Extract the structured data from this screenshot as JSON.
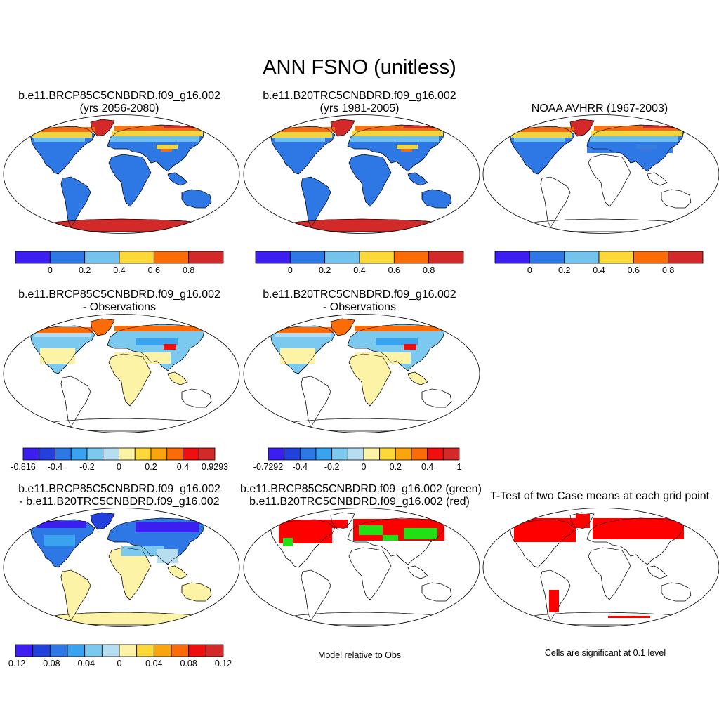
{
  "figure": {
    "title": "ANN FSNO (unitless)"
  },
  "colors": {
    "abs_levels": [
      "#3c1ef0",
      "#2e78e6",
      "#73c3ee",
      "#fcd938",
      "#fb6b06",
      "#d32a29"
    ],
    "diff_levels": [
      "#3c1ef0",
      "#2241dc",
      "#2e78e6",
      "#3aa3f0",
      "#7cc9f0",
      "#b7def0",
      "#fdf3a7",
      "#fcd938",
      "#fba50e",
      "#fb6b06",
      "#ef0f0f",
      "#d32a29"
    ],
    "sig_red": "#ff0000",
    "sig_green": "#22e014"
  },
  "panels": [
    {
      "id": "p1",
      "title_line1": "b.e11.BRCP85C5CNBDRD.f09_g16.002",
      "title_line2": "(yrs 2056-2080)",
      "colorbar_labels": [
        "0",
        "0.2",
        "0.4",
        "0.6",
        "0.8"
      ]
    },
    {
      "id": "p2",
      "title_line1": "b.e11.B20TRC5CNBDRD.f09_g16.002",
      "title_line2": "(yrs 1981-2005)",
      "colorbar_labels": [
        "0",
        "0.2",
        "0.4",
        "0.6",
        "0.8"
      ]
    },
    {
      "id": "p3",
      "title_line1": "NOAA AVHRR (1967-2003)",
      "colorbar_labels": [
        "0",
        "0.2",
        "0.4",
        "0.6",
        "0.8"
      ]
    },
    {
      "id": "p4",
      "title_line1": "b.e11.BRCP85C5CNBDRD.f09_g16.002",
      "title_line2": "- Observations",
      "colorbar_labels": [
        "-0.816",
        "-0.4",
        "-0.2",
        "0",
        "0.2",
        "0.4",
        "0.9293"
      ]
    },
    {
      "id": "p5",
      "title_line1": "b.e11.B20TRC5CNBDRD.f09_g16.002",
      "title_line2": "- Observations",
      "colorbar_labels": [
        "-0.7292",
        "-0.4",
        "-0.2",
        "0",
        "0.2",
        "0.4",
        "1"
      ]
    },
    {
      "id": "p6",
      "title_line1": "b.e11.BRCP85C5CNBDRD.f09_g16.002",
      "title_line2": "- b.e11.B20TRC5CNBDRD.f09_g16.002",
      "colorbar_labels": [
        "-0.12",
        "-0.08",
        "-0.04",
        "0",
        "0.04",
        "0.08",
        "0.12"
      ]
    },
    {
      "id": "p7",
      "title_line1": "b.e11.BRCP85C5CNBDRD.f09_g16.002 (green)",
      "title_line2": "b.e11.B20TRC5CNBDRD.f09_g16.002 (red)",
      "note": "Model relative to Obs"
    },
    {
      "id": "p8",
      "title_line1": "T-Test of two Case means at each grid point",
      "note": "Cells are significant at 0.1 level"
    }
  ]
}
